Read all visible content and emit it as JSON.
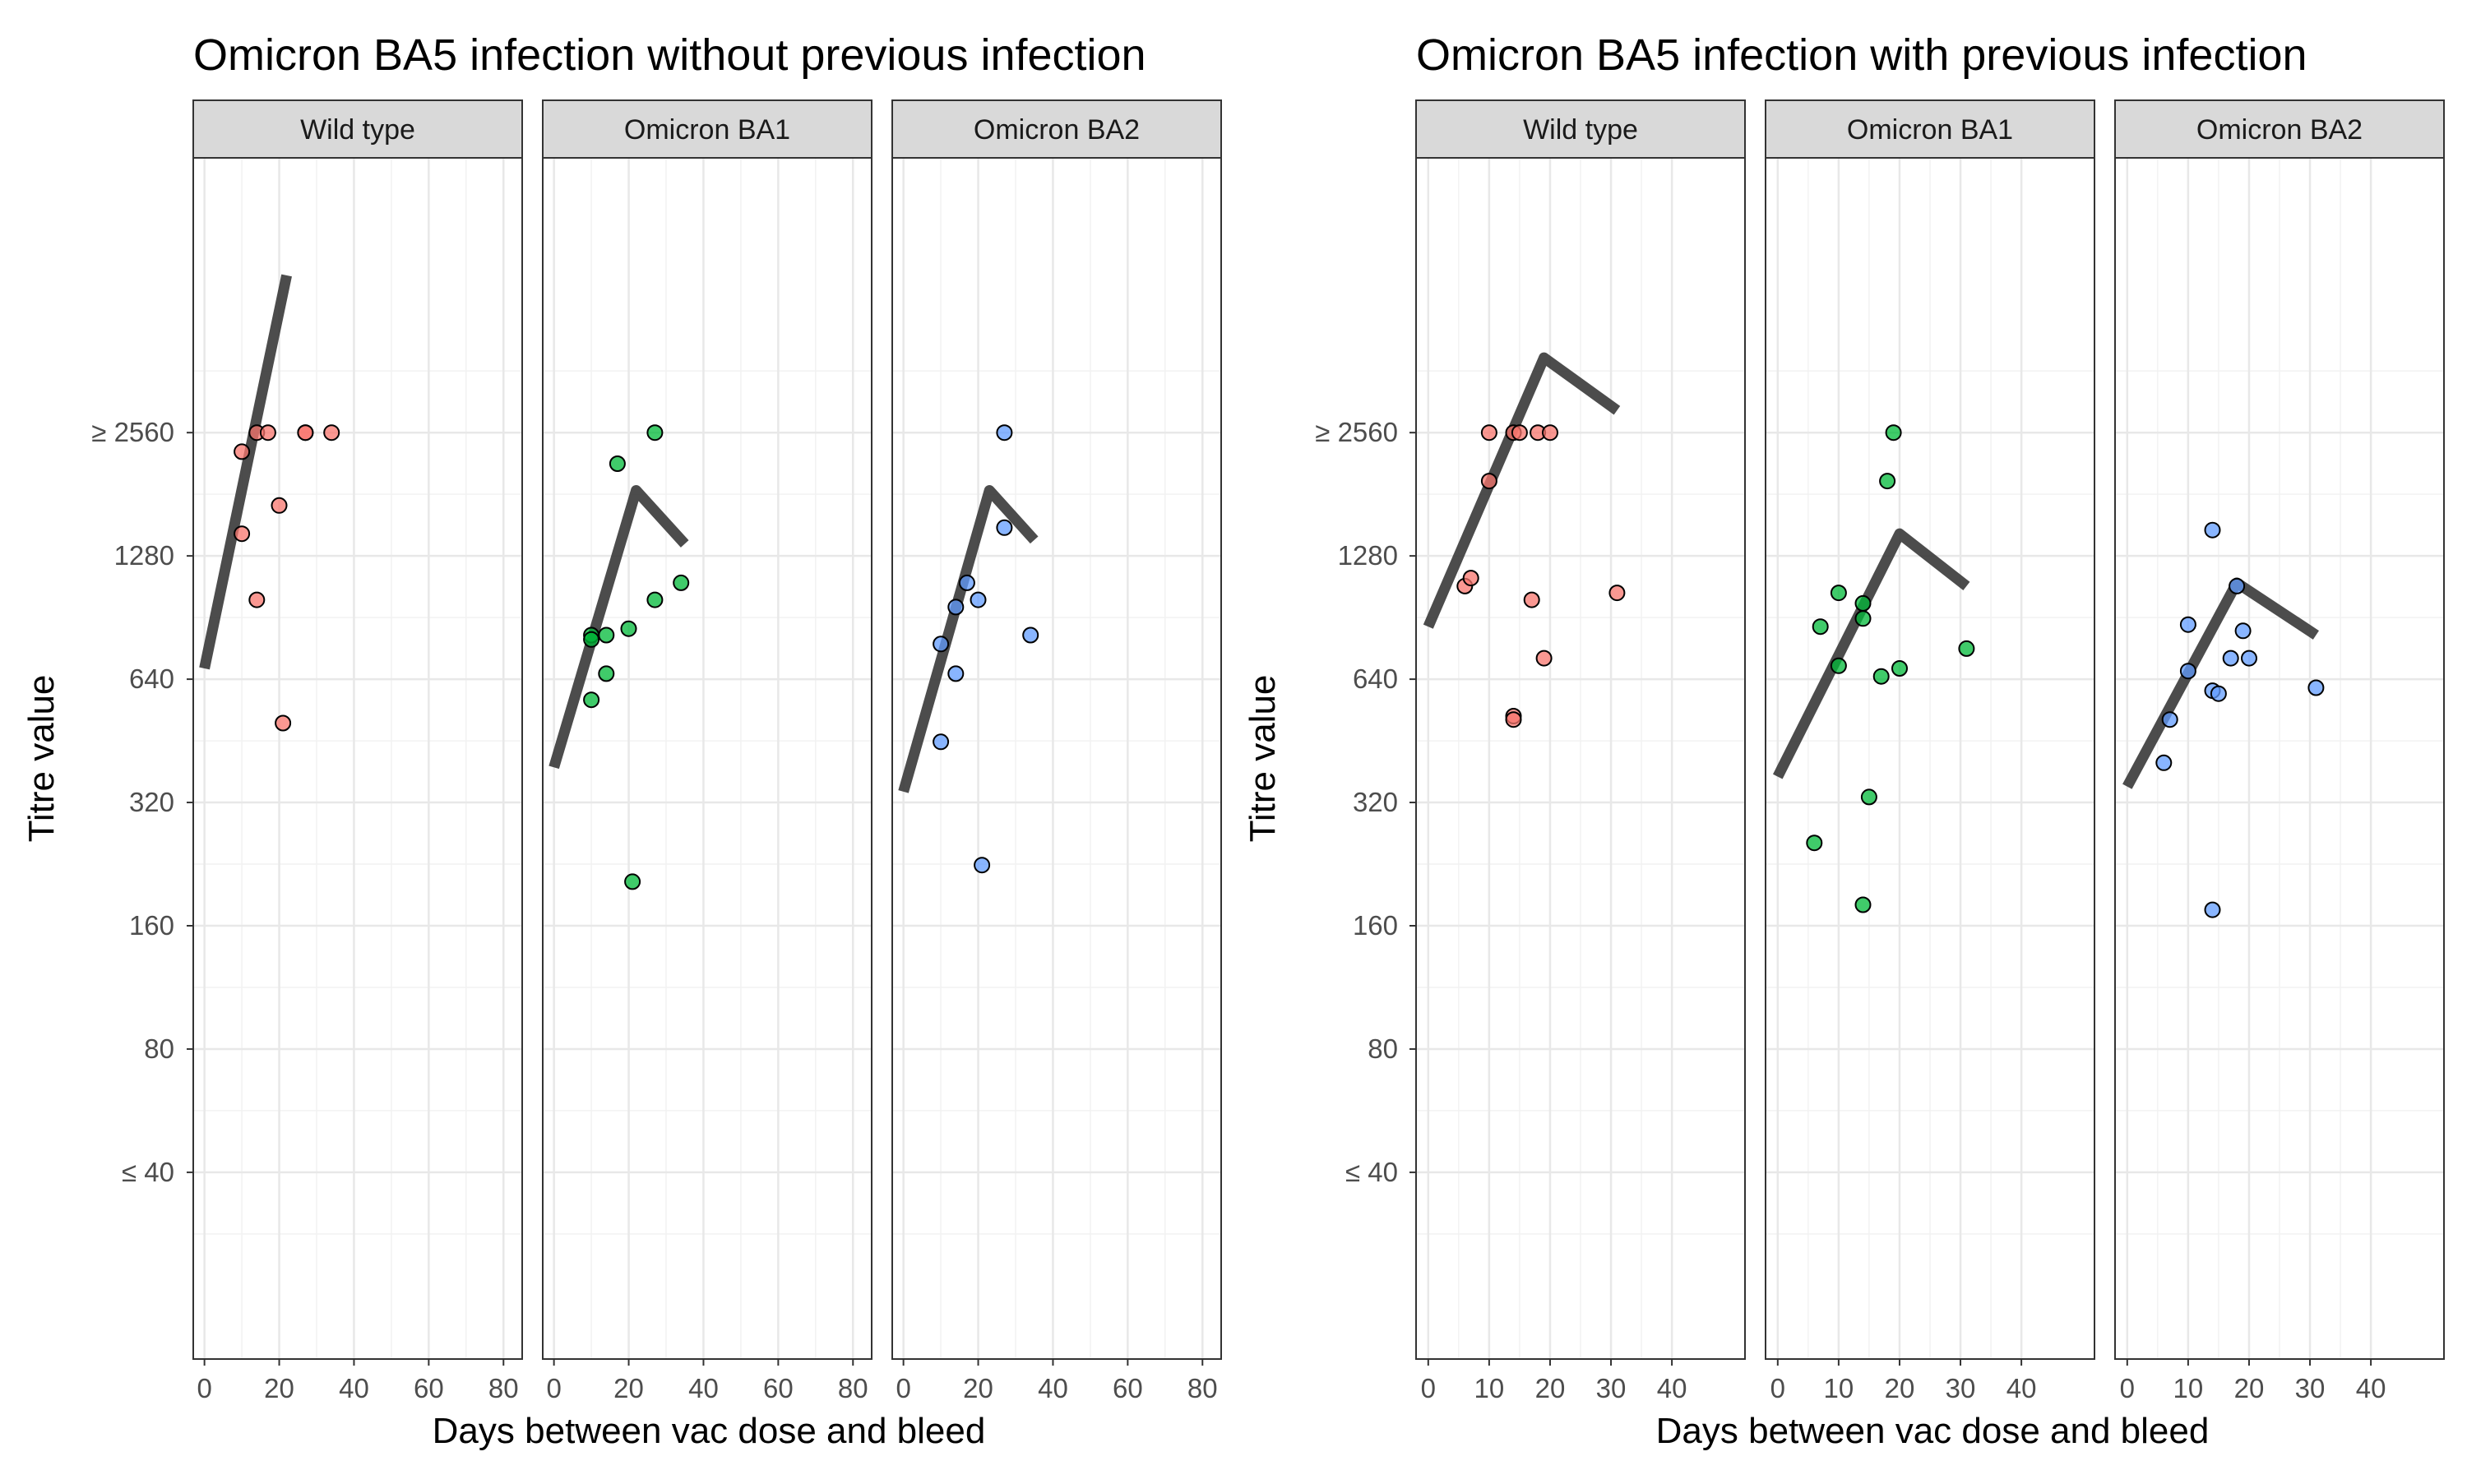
{
  "chart_data": [
    {
      "type": "scatter",
      "title": "Omicron BA5 infection without previous infection",
      "xlabel": "Days between vac dose and bleed",
      "ylabel": "Titre value",
      "y_scale": "log2",
      "xlim": [
        -3,
        85
      ],
      "ylim": [
        14,
        12000
      ],
      "x_ticks": [
        0,
        20,
        40,
        60,
        80
      ],
      "x_tick_labels": [
        "0",
        "20",
        "40",
        "60",
        "80"
      ],
      "y_ticks": [
        40,
        80,
        160,
        320,
        640,
        1280,
        2560
      ],
      "y_tick_labels": [
        "≤ 40",
        "80",
        "160",
        "320",
        "640",
        "1280",
        "≥ 2560"
      ],
      "grid": true,
      "legend": "none",
      "panels": [
        {
          "strip": "Wild type",
          "color": "#F8766D",
          "points": [
            [
              10,
              2300
            ],
            [
              10,
              1450
            ],
            [
              14,
              2560
            ],
            [
              17,
              2560
            ],
            [
              14,
              1000
            ],
            [
              20,
              1700
            ],
            [
              21,
              500
            ],
            [
              27,
              2560
            ],
            [
              27,
              2560
            ],
            [
              34,
              2560
            ]
          ],
          "fit": [
            [
              0,
              680
            ],
            [
              22,
              6200
            ]
          ]
        },
        {
          "strip": "Omicron BA1",
          "color": "#00BA38",
          "points": [
            [
              10,
              820
            ],
            [
              10,
              800
            ],
            [
              10,
              570
            ],
            [
              14,
              820
            ],
            [
              14,
              660
            ],
            [
              17,
              2150
            ],
            [
              20,
              850
            ],
            [
              21,
              205
            ],
            [
              27,
              2560
            ],
            [
              27,
              1000
            ],
            [
              34,
              1100
            ]
          ],
          "fit": [
            [
              0,
              390
            ],
            [
              22,
              1850
            ],
            [
              35,
              1370
            ]
          ]
        },
        {
          "strip": "Omicron BA2",
          "color": "#619CFF",
          "points": [
            [
              10,
              780
            ],
            [
              10,
              450
            ],
            [
              14,
              660
            ],
            [
              14,
              960
            ],
            [
              17,
              1100
            ],
            [
              20,
              1000
            ],
            [
              21,
              225
            ],
            [
              27,
              2560
            ],
            [
              27,
              1500
            ],
            [
              34,
              820
            ]
          ],
          "fit": [
            [
              0,
              340
            ],
            [
              23,
              1850
            ],
            [
              35,
              1400
            ]
          ]
        }
      ]
    },
    {
      "type": "scatter",
      "title": "Omicron BA5 infection with previous infection",
      "xlabel": "Days between vac dose and bleed",
      "ylabel": "Titre value",
      "y_scale": "log2",
      "xlim": [
        -2,
        52
      ],
      "ylim": [
        14,
        12000
      ],
      "x_ticks": [
        0,
        10,
        20,
        30,
        40
      ],
      "x_tick_labels": [
        "0",
        "10",
        "20",
        "30",
        "40"
      ],
      "y_ticks": [
        40,
        80,
        160,
        320,
        640,
        1280,
        2560
      ],
      "y_tick_labels": [
        "≤ 40",
        "80",
        "160",
        "320",
        "640",
        "1280",
        "≥ 2560"
      ],
      "grid": true,
      "legend": "none",
      "panels": [
        {
          "strip": "Wild type",
          "color": "#F8766D",
          "points": [
            [
              6,
              1080
            ],
            [
              7,
              1130
            ],
            [
              10,
              2560
            ],
            [
              10,
              1950
            ],
            [
              14,
              2560
            ],
            [
              14,
              520
            ],
            [
              14,
              510
            ],
            [
              15,
              2560
            ],
            [
              17,
              1000
            ],
            [
              18,
              2560
            ],
            [
              19,
              720
            ],
            [
              20,
              2560
            ],
            [
              31,
              1040
            ]
          ],
          "fit": [
            [
              0,
              860
            ],
            [
              19,
              3900
            ],
            [
              31,
              2900
            ]
          ]
        },
        {
          "strip": "Omicron BA1",
          "color": "#00BA38",
          "points": [
            [
              6,
              255
            ],
            [
              7,
              860
            ],
            [
              10,
              1040
            ],
            [
              10,
              690
            ],
            [
              14,
              980
            ],
            [
              14,
              900
            ],
            [
              14,
              180
            ],
            [
              15,
              330
            ],
            [
              17,
              650
            ],
            [
              18,
              1950
            ],
            [
              19,
              2560
            ],
            [
              20,
              680
            ],
            [
              31,
              760
            ]
          ],
          "fit": [
            [
              0,
              370
            ],
            [
              20,
              1450
            ],
            [
              31,
              1080
            ]
          ]
        },
        {
          "strip": "Omicron BA2",
          "color": "#619CFF",
          "points": [
            [
              6,
              400
            ],
            [
              7,
              510
            ],
            [
              10,
              870
            ],
            [
              10,
              670
            ],
            [
              14,
              1480
            ],
            [
              14,
              600
            ],
            [
              14,
              175
            ],
            [
              15,
              590
            ],
            [
              17,
              720
            ],
            [
              18,
              1080
            ],
            [
              19,
              840
            ],
            [
              20,
              720
            ],
            [
              31,
              610
            ]
          ],
          "fit": [
            [
              0,
              350
            ],
            [
              18,
              1100
            ],
            [
              31,
              820
            ]
          ]
        }
      ]
    }
  ]
}
